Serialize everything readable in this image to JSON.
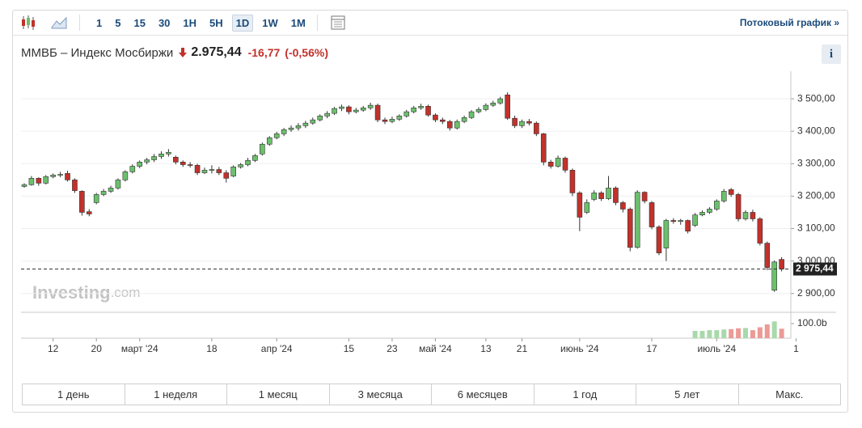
{
  "toolbar": {
    "intervals": [
      "1",
      "5",
      "15",
      "30",
      "1H",
      "5H",
      "1D",
      "1W",
      "1M"
    ],
    "selected_interval": "1D",
    "streaming_link": "Потоковый график »"
  },
  "header": {
    "title": "ММВБ – Индекс Мосбиржи",
    "price": "2.975,44",
    "change": "-16,77",
    "change_percent": "(-0,56%)",
    "info_button": "i"
  },
  "chart_data": {
    "type": "candlestick",
    "watermark": {
      "brand": "Investing",
      "suffix": ".com"
    },
    "up_color": "#6cc06c",
    "down_color": "#c3312b",
    "volume_up_color": "#a9d9ab",
    "volume_down_color": "#ec9a96",
    "grid": true,
    "categories": [
      null,
      null,
      null,
      null,
      "12",
      null,
      null,
      null,
      null,
      null,
      "20",
      null,
      null,
      null,
      null,
      null,
      "март '24",
      null,
      null,
      null,
      null,
      null,
      null,
      null,
      null,
      null,
      "18",
      null,
      null,
      null,
      null,
      null,
      null,
      null,
      null,
      "апр '24",
      null,
      null,
      null,
      null,
      null,
      null,
      null,
      null,
      null,
      "15",
      null,
      null,
      null,
      null,
      null,
      "23",
      null,
      null,
      null,
      null,
      null,
      "май '24",
      null,
      null,
      null,
      null,
      null,
      null,
      "13",
      null,
      null,
      null,
      null,
      "21",
      null,
      null,
      null,
      null,
      null,
      null,
      null,
      "июнь '24",
      null,
      null,
      null,
      null,
      null,
      null,
      null,
      null,
      null,
      "17",
      null,
      null,
      null,
      null,
      null,
      null,
      null,
      null,
      "июль '24",
      null,
      null,
      null,
      null,
      null,
      null,
      null,
      null,
      null,
      null,
      "1"
    ],
    "open": [
      3230,
      3235,
      3255,
      3240,
      3260,
      3265,
      3270,
      3250,
      3215,
      3152,
      3180,
      3205,
      3215,
      3225,
      3250,
      3275,
      3292,
      3305,
      3312,
      3322,
      3330,
      3320,
      3305,
      3297,
      3295,
      3272,
      3280,
      3282,
      3272,
      3262,
      3290,
      3297,
      3310,
      3330,
      3360,
      3380,
      3392,
      3405,
      3410,
      3417,
      3425,
      3435,
      3447,
      3455,
      3470,
      3475,
      3460,
      3465,
      3472,
      3480,
      3435,
      3430,
      3437,
      3447,
      3460,
      3472,
      3477,
      3450,
      3435,
      3430,
      3410,
      3430,
      3442,
      3460,
      3467,
      3480,
      3487,
      3512,
      3440,
      3417,
      3430,
      3425,
      3392,
      3305,
      3292,
      3317,
      3280,
      3210,
      3150,
      3190,
      3210,
      3192,
      3225,
      3180,
      3160,
      3042,
      3212,
      3180,
      3105,
      3040,
      3125,
      3122,
      3125,
      3110,
      3142,
      3150,
      3160,
      3185,
      3220,
      3205,
      3130,
      3150,
      3130,
      3055,
      2910,
      3005,
      null,
      null
    ],
    "high": [
      3240,
      3262,
      3258,
      3265,
      3270,
      3275,
      3278,
      3255,
      3218,
      3160,
      3210,
      3222,
      3232,
      3255,
      3280,
      3298,
      3310,
      3318,
      3330,
      3338,
      3345,
      3325,
      3310,
      3305,
      3300,
      3288,
      3295,
      3290,
      3280,
      3295,
      3302,
      3318,
      3330,
      3365,
      3385,
      3398,
      3410,
      3418,
      3425,
      3432,
      3442,
      3452,
      3462,
      3475,
      3482,
      3480,
      3472,
      3478,
      3488,
      3485,
      3442,
      3445,
      3452,
      3466,
      3478,
      3485,
      3482,
      3455,
      3442,
      3435,
      3436,
      3448,
      3465,
      3474,
      3486,
      3494,
      3506,
      3520,
      3448,
      3436,
      3438,
      3430,
      3395,
      3312,
      3325,
      3322,
      3285,
      3215,
      3190,
      3218,
      3215,
      3262,
      3230,
      3185,
      3165,
      3218,
      3215,
      3185,
      3110,
      3130,
      3132,
      3130,
      3128,
      3148,
      3156,
      3166,
      3190,
      3222,
      3225,
      3210,
      3156,
      3158,
      3135,
      3060,
      3002,
      3012,
      null,
      null
    ],
    "low": [
      3226,
      3232,
      3232,
      3236,
      3255,
      3258,
      3245,
      3210,
      3140,
      3138,
      3175,
      3200,
      3210,
      3220,
      3245,
      3270,
      3286,
      3298,
      3305,
      3315,
      3322,
      3298,
      3290,
      3288,
      3265,
      3268,
      3270,
      3265,
      3242,
      3258,
      3285,
      3292,
      3305,
      3325,
      3355,
      3375,
      3385,
      3398,
      3402,
      3410,
      3420,
      3430,
      3440,
      3450,
      3462,
      3452,
      3455,
      3460,
      3466,
      3428,
      3422,
      3425,
      3432,
      3442,
      3455,
      3466,
      3445,
      3428,
      3422,
      3402,
      3405,
      3425,
      3438,
      3455,
      3462,
      3475,
      3482,
      3435,
      3410,
      3410,
      3418,
      3385,
      3295,
      3285,
      3288,
      3272,
      3200,
      3092,
      3145,
      3185,
      3185,
      3188,
      3172,
      3150,
      3030,
      3038,
      3178,
      3098,
      3018,
      3000,
      3115,
      3112,
      3085,
      3105,
      3138,
      3145,
      3155,
      3180,
      3198,
      3122,
      3125,
      3122,
      3048,
      2972,
      2905,
      2968,
      null,
      null
    ],
    "close": [
      3235,
      3255,
      3240,
      3260,
      3265,
      3267,
      3250,
      3217,
      3150,
      3145,
      3205,
      3215,
      3225,
      3250,
      3275,
      3292,
      3305,
      3312,
      3322,
      3330,
      3335,
      3305,
      3297,
      3295,
      3272,
      3280,
      3282,
      3272,
      3255,
      3290,
      3297,
      3310,
      3325,
      3360,
      3380,
      3392,
      3405,
      3410,
      3417,
      3425,
      3435,
      3447,
      3455,
      3470,
      3475,
      3460,
      3465,
      3472,
      3480,
      3435,
      3430,
      3437,
      3447,
      3460,
      3472,
      3477,
      3450,
      3435,
      3430,
      3410,
      3430,
      3442,
      3460,
      3467,
      3480,
      3487,
      3500,
      3440,
      3417,
      3430,
      3425,
      3392,
      3305,
      3292,
      3317,
      3280,
      3210,
      3135,
      3180,
      3210,
      3192,
      3225,
      3180,
      3160,
      3042,
      3212,
      3185,
      3105,
      3025,
      3125,
      3122,
      3125,
      3092,
      3142,
      3150,
      3160,
      3185,
      3215,
      3205,
      3130,
      3150,
      3130,
      3055,
      2980,
      2997,
      2975.44,
      null,
      null
    ],
    "volume": [
      null,
      null,
      null,
      null,
      null,
      null,
      null,
      null,
      null,
      null,
      null,
      null,
      null,
      null,
      null,
      null,
      null,
      null,
      null,
      null,
      null,
      null,
      null,
      null,
      null,
      null,
      null,
      null,
      null,
      null,
      null,
      null,
      null,
      null,
      null,
      null,
      null,
      null,
      null,
      null,
      null,
      null,
      null,
      null,
      null,
      null,
      null,
      null,
      null,
      null,
      null,
      null,
      null,
      null,
      null,
      null,
      null,
      null,
      null,
      null,
      null,
      null,
      null,
      null,
      null,
      null,
      null,
      null,
      null,
      null,
      null,
      null,
      null,
      null,
      null,
      null,
      null,
      null,
      null,
      null,
      null,
      null,
      null,
      null,
      null,
      null,
      null,
      null,
      null,
      null,
      null,
      null,
      null,
      50,
      50,
      55,
      55,
      60,
      62,
      68,
      70,
      55,
      75,
      95,
      115,
      65,
      null,
      null
    ],
    "ylim": [
      2842,
      3585
    ],
    "yticks": [
      {
        "value": 2900,
        "label": "2 900,00"
      },
      {
        "value": 3000,
        "label": "3 000,00"
      },
      {
        "value": 3100,
        "label": "3 100,00"
      },
      {
        "value": 3200,
        "label": "3 200,00"
      },
      {
        "value": 3300,
        "label": "3 300,00"
      },
      {
        "value": 3400,
        "label": "3 400,00"
      },
      {
        "value": 3500,
        "label": "3 500,00"
      }
    ],
    "volume_ylim": [
      0,
      172
    ],
    "volume_yticks": [
      {
        "value": 100,
        "label": "100.0b"
      }
    ],
    "last_price": {
      "value": 2975.44,
      "label": "2 975,44"
    }
  },
  "periods": [
    "1 день",
    "1 неделя",
    "1 месяц",
    "3 месяца",
    "6 месяцев",
    "1 год",
    "5 лет",
    "Макс."
  ]
}
